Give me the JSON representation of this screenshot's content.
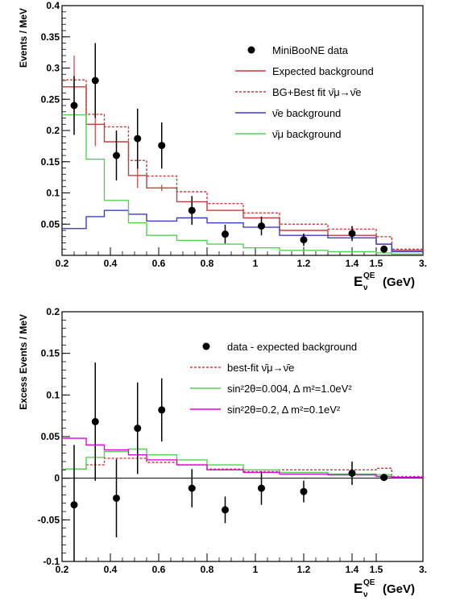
{
  "chart_data": [
    {
      "type": "line",
      "ylabel": "Events / MeV",
      "xlabel_main": "E",
      "xlabel_sub": "ν",
      "xlabel_sup": "QE",
      "xlabel_unit": "(GeV)",
      "xticks": [
        "0.2",
        "0.4",
        "0.6",
        "0.8",
        "1",
        "1.2",
        "1.4",
        "1.5",
        "3."
      ],
      "yticks": [
        "0.05",
        "0.1",
        "0.15",
        "0.2",
        "0.25",
        "0.3",
        "0.35",
        "0.4"
      ],
      "ylim": [
        0,
        0.4
      ],
      "bin_edges": [
        0.2,
        0.3,
        0.375,
        0.475,
        0.55,
        0.675,
        0.8,
        0.95,
        1.1,
        1.3,
        1.5,
        2.0,
        3.0
      ],
      "legend": [
        {
          "label": "MiniBooNE data",
          "type": "marker",
          "color": "#000000"
        },
        {
          "label": "Expected background",
          "type": "line",
          "color": "#c83c3c"
        },
        {
          "label": "BG+Best fit ν̄μ→ν̄e",
          "type": "dash",
          "color": "#c83c3c"
        },
        {
          "label": "ν̄e background",
          "type": "line",
          "color": "#3c3cd2"
        },
        {
          "label": "ν̄μ background",
          "type": "line",
          "color": "#50d250"
        }
      ],
      "series": [
        {
          "name": "Expected background",
          "values": [
            0.27,
            0.21,
            0.182,
            0.128,
            0.108,
            0.086,
            0.072,
            0.06,
            0.04,
            0.032,
            0.018,
            0.008
          ],
          "color": "#c83c3c",
          "style": "solid",
          "errors": [
            0.05,
            0.035,
            0.0,
            0.02,
            0.005,
            0.0,
            0.0,
            0.0,
            0.0,
            0.0,
            0.0,
            0.0
          ]
        },
        {
          "name": "BG+Best fit ν̄μ→ν̄e",
          "values": [
            0.281,
            0.226,
            0.206,
            0.152,
            0.127,
            0.102,
            0.083,
            0.068,
            0.05,
            0.042,
            0.03,
            0.01
          ],
          "color": "#c83c3c",
          "style": "dash"
        },
        {
          "name": "ν̄e background",
          "values": [
            0.043,
            0.062,
            0.072,
            0.066,
            0.055,
            0.06,
            0.052,
            0.045,
            0.032,
            0.028,
            0.018,
            0.006
          ],
          "color": "#3c3cd2",
          "style": "solid"
        },
        {
          "name": "ν̄μ background",
          "values": [
            0.225,
            0.154,
            0.088,
            0.052,
            0.032,
            0.024,
            0.018,
            0.012,
            0.008,
            0.006,
            0.004,
            0.002
          ],
          "color": "#50d250",
          "style": "solid"
        }
      ],
      "data_points": {
        "name": "MiniBooNE data",
        "x": [
          0.25,
          0.3375,
          0.425,
          0.5125,
          0.6125,
          0.7375,
          0.875,
          1.025,
          1.2,
          1.4,
          1.75
        ],
        "y": [
          0.24,
          0.28,
          0.16,
          0.187,
          0.176,
          0.072,
          0.034,
          0.047,
          0.025,
          0.035,
          0.01
        ],
        "err": [
          0.047,
          0.06,
          0.04,
          0.048,
          0.037,
          0.023,
          0.015,
          0.015,
          0.01,
          0.012,
          0.004
        ]
      }
    },
    {
      "type": "line",
      "ylabel": "Excess Events / MeV",
      "xlabel_main": "E",
      "xlabel_sub": "ν",
      "xlabel_sup": "QE",
      "xlabel_unit": "(GeV)",
      "xticks": [
        "0.2",
        "0.4",
        "0.6",
        "0.8",
        "1",
        "1.2",
        "1.4",
        "1.5",
        "3."
      ],
      "yticks": [
        "-0.1",
        "-0.05",
        "0",
        "0.05",
        "0.1",
        "0.15",
        "0.2"
      ],
      "ylim": [
        -0.1,
        0.2
      ],
      "bin_edges": [
        0.2,
        0.3,
        0.375,
        0.475,
        0.55,
        0.675,
        0.8,
        0.95,
        1.1,
        1.3,
        1.5,
        2.0,
        3.0
      ],
      "legend": [
        {
          "label": "data - expected background",
          "type": "marker",
          "color": "#000000"
        },
        {
          "label": "best-fit ν̄μ→ν̄e",
          "type": "dash",
          "color": "#c83c3c"
        },
        {
          "label": "sin²2θ=0.004, Δ m²=1.0eV²",
          "type": "line",
          "color": "#50d250"
        },
        {
          "label": "sin²2θ=0.2, Δ m²=0.1eV²",
          "type": "line",
          "color": "#e600e6"
        }
      ],
      "series": [
        {
          "name": "best-fit ν̄μ→ν̄e",
          "values": [
            0.011,
            0.016,
            0.024,
            0.024,
            0.019,
            0.016,
            0.011,
            0.008,
            0.01,
            0.01,
            0.012,
            0.002
          ],
          "color": "#c83c3c",
          "style": "dash"
        },
        {
          "name": "sin²2θ=0.004, Δ m²=1.0eV²",
          "values": [
            0.011,
            0.025,
            0.032,
            0.035,
            0.028,
            0.022,
            0.016,
            0.01,
            0.007,
            0.005,
            0.004,
            0.001
          ],
          "color": "#50d250",
          "style": "solid"
        },
        {
          "name": "sin²2θ=0.2, Δ m²=0.1eV²",
          "values": [
            0.048,
            0.04,
            0.034,
            0.028,
            0.022,
            0.016,
            0.01,
            0.007,
            0.005,
            0.004,
            0.002,
            0.001
          ],
          "color": "#e600e6",
          "style": "solid"
        }
      ],
      "data_points": {
        "name": "data - expected background",
        "x": [
          0.25,
          0.3375,
          0.425,
          0.5125,
          0.6125,
          0.7375,
          0.875,
          1.025,
          1.2,
          1.4,
          1.75
        ],
        "y": [
          -0.032,
          0.068,
          -0.024,
          0.06,
          0.082,
          -0.012,
          -0.038,
          -0.012,
          -0.016,
          0.006,
          0.001
        ],
        "err": [
          0.072,
          0.071,
          0.047,
          0.055,
          0.038,
          0.023,
          0.016,
          0.02,
          0.013,
          0.014,
          0.004
        ]
      }
    }
  ]
}
